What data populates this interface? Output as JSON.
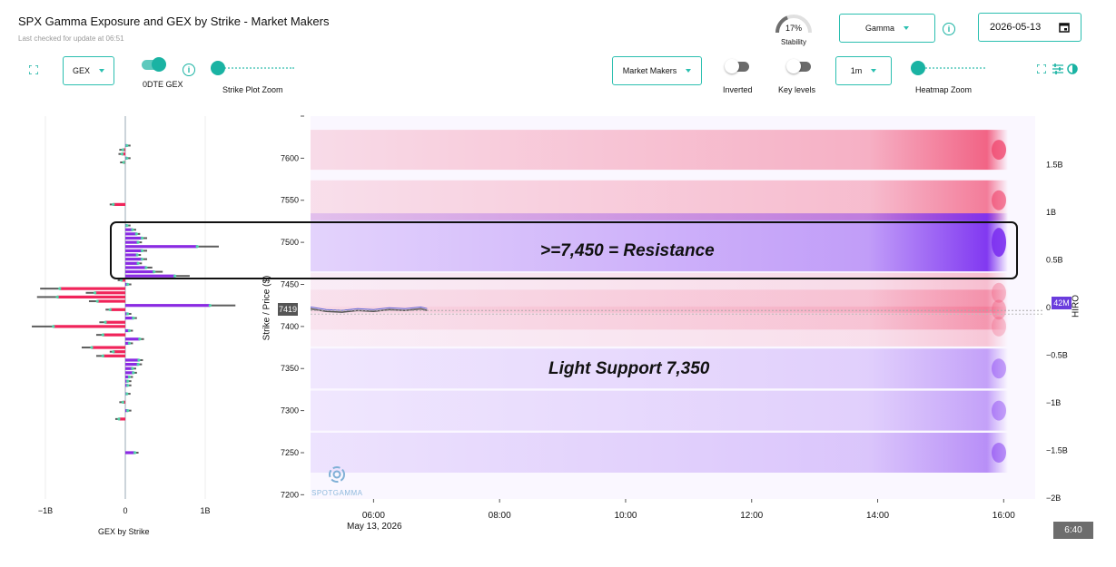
{
  "header": {
    "title": "SPX Gamma Exposure and GEX by Strike - Market Makers",
    "subtitle": "Last checked for update at 06:51"
  },
  "controls": {
    "gex_select": "GEX",
    "dte_label": "0DTE GEX",
    "strike_zoom_label": "Strike Plot Zoom",
    "stability_value": "17%",
    "stability_label": "Stability",
    "gamma_select": "Gamma",
    "date_value": "2026-05-13",
    "participant_select": "Market Makers",
    "inverted_label": "Inverted",
    "key_levels_label": "Key levels",
    "interval_select": "1m",
    "heatmap_zoom_label": "Heatmap Zoom",
    "stability_fraction": 0.17,
    "dte_enabled": true,
    "inverted_enabled": false,
    "key_levels_enabled": false
  },
  "colors": {
    "accent": "#1ab3a3",
    "positive_gex": "#8a2be2",
    "negative_gex": "#f0245a",
    "heat_positive": "#7b2ff0",
    "heat_negative": "#f04a70"
  },
  "icons": [
    "expand-icon",
    "info-icon",
    "calendar-icon",
    "fullscreen-icon",
    "sliders-icon",
    "contrast-icon",
    "spotgamma-logo-icon"
  ],
  "chart_data": [
    {
      "type": "bar",
      "orientation": "horizontal",
      "xlabel": "GEX by Strike",
      "xticks": [
        "−1B",
        "0",
        "1B"
      ],
      "xlim": [
        -1.1,
        1.3
      ],
      "ylim": [
        7195,
        7650
      ],
      "values_unit": "B",
      "strikes": [
        7615,
        7610,
        7605,
        7600,
        7595,
        7545,
        7520,
        7515,
        7510,
        7505,
        7500,
        7495,
        7490,
        7485,
        7480,
        7475,
        7470,
        7465,
        7460,
        7455,
        7450,
        7445,
        7440,
        7435,
        7430,
        7425,
        7420,
        7415,
        7410,
        7405,
        7400,
        7395,
        7390,
        7385,
        7380,
        7375,
        7370,
        7365,
        7360,
        7355,
        7350,
        7345,
        7340,
        7335,
        7330,
        7320,
        7310,
        7300,
        7290,
        7250
      ],
      "values": [
        0.02,
        -0.03,
        -0.04,
        0.02,
        -0.02,
        -0.15,
        0.02,
        0.09,
        0.14,
        0.21,
        0.16,
        0.9,
        0.21,
        0.15,
        0.21,
        0.16,
        0.26,
        0.36,
        0.62,
        -0.05,
        0.03,
        -0.82,
        -0.38,
        -0.85,
        -0.35,
        1.06,
        -0.19,
        0.03,
        0.1,
        -0.25,
        -0.9,
        0.05,
        -0.28,
        0.18,
        0.05,
        -0.42,
        -0.15,
        -0.28,
        0.17,
        0.16,
        0.09,
        0.1,
        0.05,
        0.03,
        0.03,
        0.02,
        -0.03,
        0.03,
        -0.08,
        0.12
      ]
    },
    {
      "type": "heatmap",
      "ylabel": "Strike / Price ($)",
      "x_ticks": [
        "06:00",
        "08:00",
        "10:00",
        "12:00",
        "14:00",
        "16:00"
      ],
      "x_date_label": "May 13, 2026",
      "y_ticks": [
        7200,
        7250,
        7300,
        7350,
        7400,
        7450,
        7500,
        7550,
        7600
      ],
      "ylim": [
        7195,
        7650
      ],
      "xlim": [
        "05:00",
        "16:30"
      ],
      "price_label": "7419",
      "price_series": {
        "x": [
          "05:00",
          "05:15",
          "05:30",
          "05:45",
          "06:00",
          "06:15",
          "06:30",
          "06:45",
          "06:51"
        ],
        "y": [
          7421,
          7418,
          7417,
          7419,
          7418,
          7420,
          7419,
          7421,
          7419
        ]
      },
      "bands": [
        {
          "strike": 7610,
          "sign": "negative",
          "intensity": 0.9
        },
        {
          "strike": 7550,
          "sign": "negative",
          "intensity": 0.75
        },
        {
          "strike": 7500,
          "sign": "positive",
          "intensity": 1.0
        },
        {
          "strike": 7440,
          "sign": "negative",
          "intensity": 0.35
        },
        {
          "strike": 7420,
          "sign": "negative",
          "intensity": 0.4
        },
        {
          "strike": 7400,
          "sign": "negative",
          "intensity": 0.3
        },
        {
          "strike": 7350,
          "sign": "positive",
          "intensity": 0.45
        },
        {
          "strike": 7300,
          "sign": "positive",
          "intensity": 0.45
        },
        {
          "strike": 7250,
          "sign": "positive",
          "intensity": 0.55
        }
      ],
      "hiro_axis": {
        "label": "HIRO",
        "ticks": [
          "−2B",
          "−1.5B",
          "−1B",
          "−0.5B",
          "0",
          "0.5B",
          "1B",
          "1.5B"
        ],
        "tick_values": [
          -2,
          -1.5,
          -1,
          -0.5,
          0,
          0.5,
          1,
          1.5
        ],
        "current_value": "42M"
      },
      "annotations": [
        ">=7,450 = Resistance",
        "Light Support 7,350"
      ],
      "watermark": "SPOTGAMMA",
      "time_badge": "6:40"
    }
  ]
}
